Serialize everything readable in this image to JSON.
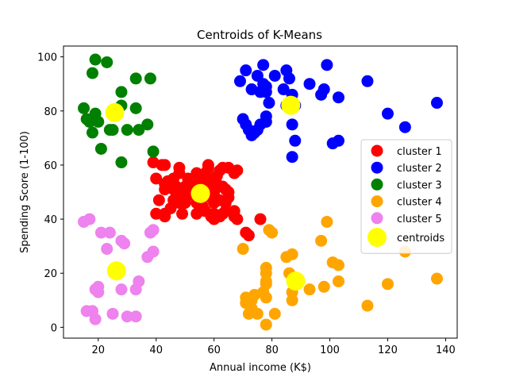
{
  "chart_data": {
    "type": "scatter",
    "title": "Centroids of K-Means",
    "xlabel": "Annual income (K$)",
    "ylabel": "Spending Score (1-100)",
    "xlim": [
      8,
      144
    ],
    "ylim": [
      -4,
      104
    ],
    "xticks": [
      20,
      40,
      60,
      80,
      100,
      120,
      140
    ],
    "yticks": [
      0,
      20,
      40,
      60,
      80,
      100
    ],
    "grid": false,
    "legend_position": "center-right",
    "series": [
      {
        "name": "cluster 1",
        "color": "#ff0000",
        "points": [
          [
            39,
            61
          ],
          [
            42,
            60
          ],
          [
            43,
            60
          ],
          [
            40,
            55
          ],
          [
            44,
            54
          ],
          [
            46,
            55
          ],
          [
            48,
            57
          ],
          [
            48,
            59
          ],
          [
            47,
            52
          ],
          [
            43,
            51
          ],
          [
            43,
            53
          ],
          [
            46,
            51
          ],
          [
            50,
            52
          ],
          [
            52,
            49
          ],
          [
            54,
            53
          ],
          [
            56,
            53
          ],
          [
            55,
            56
          ],
          [
            57,
            57
          ],
          [
            58,
            59
          ],
          [
            58,
            60
          ],
          [
            59,
            55
          ],
          [
            60,
            55
          ],
          [
            61,
            56
          ],
          [
            62,
            58
          ],
          [
            63,
            59
          ],
          [
            65,
            59
          ],
          [
            67,
            57
          ],
          [
            68,
            58
          ],
          [
            61,
            53
          ],
          [
            63,
            52
          ],
          [
            64,
            51
          ],
          [
            65,
            50
          ],
          [
            60,
            50
          ],
          [
            59,
            48
          ],
          [
            62,
            47
          ],
          [
            64,
            46
          ],
          [
            65,
            48
          ],
          [
            60,
            46
          ],
          [
            60,
            42
          ],
          [
            57,
            43
          ],
          [
            59,
            41
          ],
          [
            60,
            40
          ],
          [
            62,
            41
          ],
          [
            63,
            42
          ],
          [
            64,
            43
          ],
          [
            67,
            43
          ],
          [
            67,
            41
          ],
          [
            68,
            40
          ],
          [
            54,
            42
          ],
          [
            54,
            46
          ],
          [
            49,
            42
          ],
          [
            48,
            46
          ],
          [
            46,
            47
          ],
          [
            45,
            44
          ],
          [
            40,
            42
          ],
          [
            41,
            47
          ],
          [
            43,
            42
          ],
          [
            43,
            41
          ],
          [
            47,
            50
          ],
          [
            49,
            48
          ],
          [
            76,
            40
          ],
          [
            71,
            35
          ],
          [
            72,
            34
          ],
          [
            55,
            50
          ],
          [
            56,
            45
          ],
          [
            58,
            52
          ],
          [
            50,
            46
          ],
          [
            52,
            51
          ],
          [
            51,
            55
          ],
          [
            54,
            57
          ]
        ]
      },
      {
        "name": "cluster 2",
        "color": "#0000ff",
        "points": [
          [
            69,
            91
          ],
          [
            71,
            95
          ],
          [
            73,
            88
          ],
          [
            75,
            93
          ],
          [
            76,
            87
          ],
          [
            77,
            97
          ],
          [
            77,
            90
          ],
          [
            78,
            87
          ],
          [
            78,
            89
          ],
          [
            79,
            83
          ],
          [
            81,
            93
          ],
          [
            85,
            95
          ],
          [
            86,
            92
          ],
          [
            87,
            86
          ],
          [
            88,
            82
          ],
          [
            93,
            90
          ],
          [
            97,
            86
          ],
          [
            98,
            88
          ],
          [
            99,
            97
          ],
          [
            103,
            85
          ],
          [
            113,
            91
          ],
          [
            120,
            79
          ],
          [
            126,
            74
          ],
          [
            137,
            83
          ],
          [
            101,
            68
          ],
          [
            103,
            69
          ],
          [
            88,
            69
          ],
          [
            87,
            75
          ],
          [
            87,
            63
          ],
          [
            75,
            73
          ],
          [
            76,
            75
          ],
          [
            78,
            78
          ],
          [
            78,
            76
          ],
          [
            71,
            75
          ],
          [
            72,
            73
          ],
          [
            74,
            72
          ],
          [
            73,
            71
          ],
          [
            70,
            77
          ],
          [
            85,
            82
          ],
          [
            84,
            88
          ]
        ]
      },
      {
        "name": "cluster 3",
        "color": "#008000",
        "points": [
          [
            19,
            99
          ],
          [
            18,
            94
          ],
          [
            23,
            98
          ],
          [
            33,
            92
          ],
          [
            38,
            92
          ],
          [
            28,
            87
          ],
          [
            28,
            82
          ],
          [
            15,
            81
          ],
          [
            25,
            79
          ],
          [
            19,
            79
          ],
          [
            16,
            77
          ],
          [
            17,
            76
          ],
          [
            20,
            76
          ],
          [
            18,
            72
          ],
          [
            24,
            73
          ],
          [
            25,
            73
          ],
          [
            30,
            73
          ],
          [
            34,
            73
          ],
          [
            37,
            75
          ],
          [
            33,
            81
          ],
          [
            21,
            66
          ],
          [
            28,
            61
          ],
          [
            39,
            65
          ]
        ]
      },
      {
        "name": "cluster 4",
        "color": "#ffa500",
        "points": [
          [
            70,
            29
          ],
          [
            71,
            11
          ],
          [
            71,
            9
          ],
          [
            72,
            5
          ],
          [
            73,
            7
          ],
          [
            73,
            10
          ],
          [
            74,
            12
          ],
          [
            75,
            5
          ],
          [
            77,
            13
          ],
          [
            78,
            1
          ],
          [
            78,
            11
          ],
          [
            78,
            16
          ],
          [
            78,
            17
          ],
          [
            78,
            20
          ],
          [
            78,
            22
          ],
          [
            79,
            36
          ],
          [
            80,
            35
          ],
          [
            81,
            5
          ],
          [
            85,
            26
          ],
          [
            86,
            20
          ],
          [
            87,
            27
          ],
          [
            87,
            13
          ],
          [
            87,
            10
          ],
          [
            88,
            17
          ],
          [
            93,
            14
          ],
          [
            97,
            32
          ],
          [
            98,
            15
          ],
          [
            99,
            39
          ],
          [
            101,
            24
          ],
          [
            103,
            23
          ],
          [
            103,
            17
          ],
          [
            113,
            8
          ],
          [
            120,
            16
          ],
          [
            126,
            28
          ],
          [
            137,
            18
          ]
        ]
      },
      {
        "name": "cluster 5",
        "color": "#ee82ee",
        "points": [
          [
            15,
            39
          ],
          [
            16,
            6
          ],
          [
            17,
            40
          ],
          [
            18,
            6
          ],
          [
            19,
            3
          ],
          [
            19,
            14
          ],
          [
            20,
            15
          ],
          [
            20,
            13
          ],
          [
            21,
            35
          ],
          [
            23,
            29
          ],
          [
            24,
            35
          ],
          [
            25,
            5
          ],
          [
            28,
            14
          ],
          [
            28,
            32
          ],
          [
            29,
            31
          ],
          [
            30,
            4
          ],
          [
            33,
            4
          ],
          [
            33,
            14
          ],
          [
            34,
            17
          ],
          [
            37,
            26
          ],
          [
            38,
            35
          ],
          [
            39,
            36
          ],
          [
            39,
            28
          ]
        ]
      }
    ],
    "centroids": {
      "name": "centroids",
      "color": "#ffff00",
      "points": [
        [
          55.3,
          49.5
        ],
        [
          86.5,
          82.1
        ],
        [
          25.7,
          79.4
        ],
        [
          88.2,
          17.1
        ],
        [
          26.3,
          20.9
        ]
      ]
    }
  }
}
